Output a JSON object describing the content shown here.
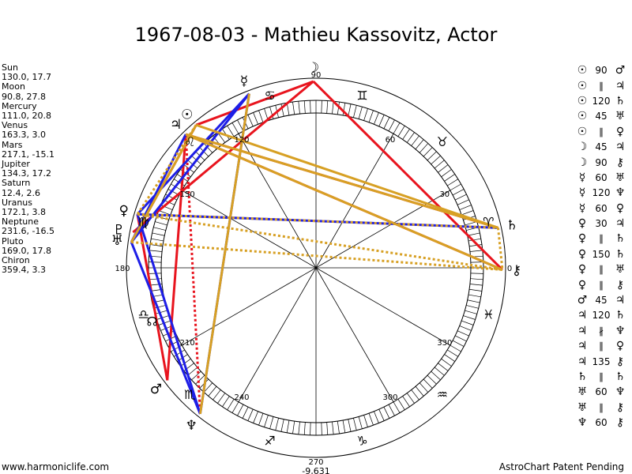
{
  "title": "1967-08-03 - Mathieu Kassovitz, Actor",
  "planets": [
    {
      "name": "Sun",
      "glyph": "☉",
      "lon": 130.0,
      "lat": 17.7,
      "pos": "130.0, 17.7"
    },
    {
      "name": "Moon",
      "glyph": "☽",
      "lon": 90.8,
      "lat": 27.8,
      "pos": "90.8, 27.8"
    },
    {
      "name": "Mercury",
      "glyph": "☿",
      "lon": 111.0,
      "lat": 20.8,
      "pos": "111.0, 20.8"
    },
    {
      "name": "Venus",
      "glyph": "♀",
      "lon": 163.3,
      "lat": 3.0,
      "pos": "163.3, 3.0"
    },
    {
      "name": "Mars",
      "glyph": "♂",
      "lon": 217.1,
      "lat": -15.1,
      "pos": "217.1, -15.1"
    },
    {
      "name": "Jupiter",
      "glyph": "♃",
      "lon": 134.3,
      "lat": 17.2,
      "pos": "134.3, 17.2"
    },
    {
      "name": "Saturn",
      "glyph": "♄",
      "lon": 12.4,
      "lat": 2.6,
      "pos": "12.4, 2.6"
    },
    {
      "name": "Uranus",
      "glyph": "♅",
      "lon": 172.1,
      "lat": 3.8,
      "pos": "172.1, 3.8"
    },
    {
      "name": "Neptune",
      "glyph": "♆",
      "lon": 231.6,
      "lat": -16.5,
      "pos": "231.6, -16.5"
    },
    {
      "name": "Pluto",
      "glyph": "♇",
      "lon": 169.0,
      "lat": 17.8,
      "pos": "169.0, 17.8"
    },
    {
      "name": "Chiron",
      "glyph": "⚷",
      "lon": 359.4,
      "lat": 3.3,
      "pos": "359.4, 3.3"
    }
  ],
  "degree_labels": [
    "0",
    "30",
    "60",
    "90",
    "120",
    "150",
    "180",
    "210",
    "240",
    "270",
    "300",
    "330"
  ],
  "center_value": "-9,631",
  "sign_glyphs": [
    "♈",
    "♉",
    "♊",
    "♋",
    "♌",
    "♍",
    "♎",
    "♏",
    "♐",
    "♑",
    "♒",
    "♓"
  ],
  "node_glyph": "☊",
  "aspects": [
    {
      "p1": "☉",
      "angle": "90",
      "p2": "♂"
    },
    {
      "p1": "☉",
      "angle": "∥",
      "p2": "♃"
    },
    {
      "p1": "☉",
      "angle": "120",
      "p2": "♄"
    },
    {
      "p1": "☉",
      "angle": "45",
      "p2": "♅"
    },
    {
      "p1": "☉",
      "angle": "∥",
      "p2": "♀"
    },
    {
      "p1": "☽",
      "angle": "45",
      "p2": "♃"
    },
    {
      "p1": "☽",
      "angle": "90",
      "p2": "⚷"
    },
    {
      "p1": "☿",
      "angle": "60",
      "p2": "♅"
    },
    {
      "p1": "☿",
      "angle": "120",
      "p2": "♆"
    },
    {
      "p1": "☿",
      "angle": "60",
      "p2": "♀"
    },
    {
      "p1": "♀",
      "angle": "30",
      "p2": "♃"
    },
    {
      "p1": "♀",
      "angle": "∥",
      "p2": "♄"
    },
    {
      "p1": "♀",
      "angle": "150",
      "p2": "♄"
    },
    {
      "p1": "♀",
      "angle": "∥",
      "p2": "♅"
    },
    {
      "p1": "♀",
      "angle": "∥",
      "p2": "⚷"
    },
    {
      "p1": "♂",
      "angle": "45",
      "p2": "♃"
    },
    {
      "p1": "♃",
      "angle": "120",
      "p2": "♄"
    },
    {
      "p1": "♃",
      "angle": "∦",
      "p2": "♆"
    },
    {
      "p1": "♃",
      "angle": "∥",
      "p2": "♀"
    },
    {
      "p1": "♃",
      "angle": "135",
      "p2": "⚷"
    },
    {
      "p1": "♄",
      "angle": "∥",
      "p2": "♄"
    },
    {
      "p1": "♅",
      "angle": "60",
      "p2": "♆"
    },
    {
      "p1": "♅",
      "angle": "∥",
      "p2": "⚷"
    },
    {
      "p1": "♆",
      "angle": "60",
      "p2": "⚷"
    }
  ],
  "footer_left": "www.harmoniclife.com",
  "footer_right": "AstroChart Patent Pending",
  "colors": {
    "red": "#e8141e",
    "blue": "#1e1ee6",
    "gold": "#d7a024",
    "ink": "#000000"
  }
}
